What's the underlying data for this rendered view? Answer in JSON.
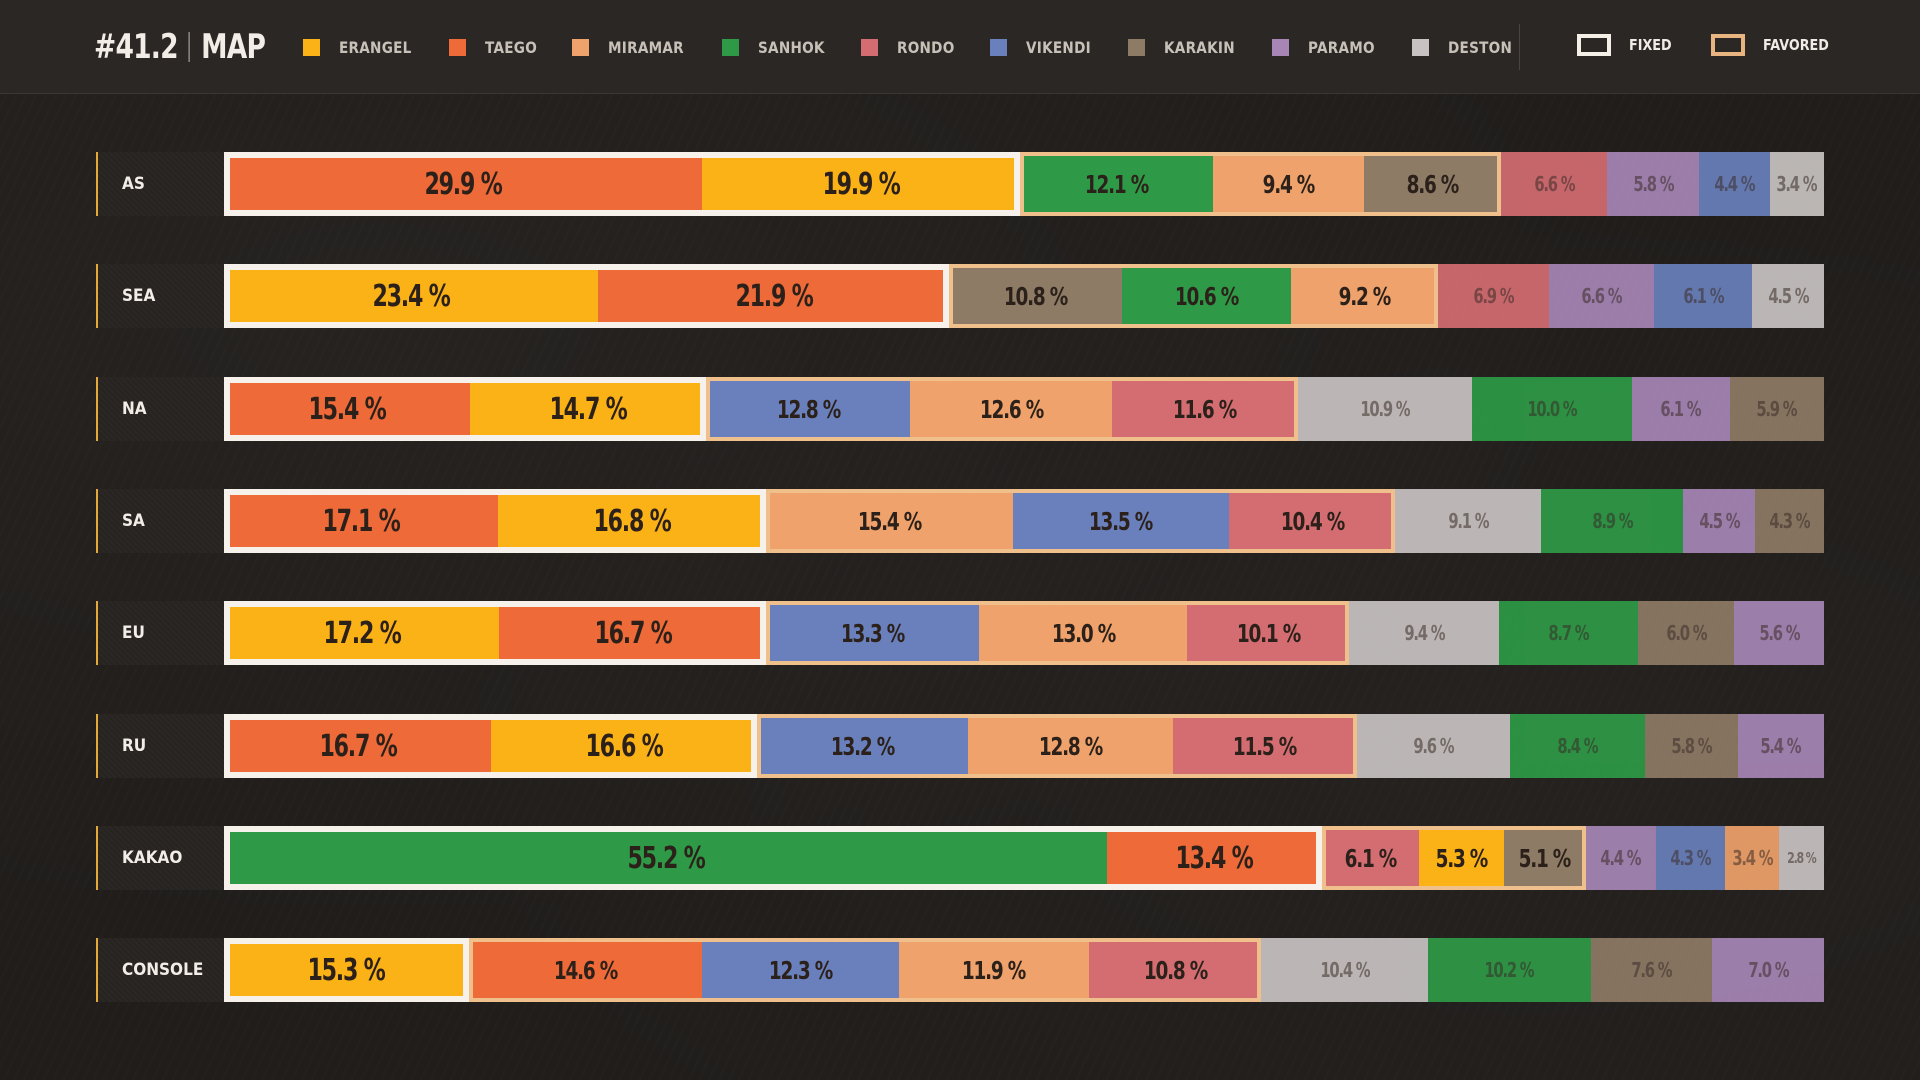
{
  "header": {
    "title_number": "#41.2",
    "title_word": "MAP"
  },
  "legend": [
    {
      "key": "erangel",
      "label": "ERANGEL",
      "color": "#fbb216"
    },
    {
      "key": "taego",
      "label": "TAEGO",
      "color": "#ee6a38"
    },
    {
      "key": "miramar",
      "label": "MIRAMAR",
      "color": "#efa26b"
    },
    {
      "key": "sanhok",
      "label": "SANHOK",
      "color": "#2e9a47"
    },
    {
      "key": "rondo",
      "label": "RONDO",
      "color": "#d46d72"
    },
    {
      "key": "vikendi",
      "label": "VIKENDI",
      "color": "#6a80bd"
    },
    {
      "key": "karakin",
      "label": "KARAKIN",
      "color": "#8e7b66"
    },
    {
      "key": "paramo",
      "label": "PARAMO",
      "color": "#a786b6"
    },
    {
      "key": "deston",
      "label": "DESTON",
      "color": "#c8c3c2"
    }
  ],
  "keys": {
    "fixed_label": "FIXED",
    "favored_label": "FAVORED"
  },
  "chart_data": {
    "type": "bar",
    "stacked": true,
    "orientation": "horizontal",
    "unit": "%",
    "rows": [
      {
        "region": "AS",
        "fixed": 2,
        "favored": 3,
        "segments": [
          {
            "map": "taego",
            "value": 29.9,
            "label": "29.9 %"
          },
          {
            "map": "erangel",
            "value": 19.9,
            "label": "19.9 %"
          },
          {
            "map": "sanhok",
            "value": 12.1,
            "label": "12.1 %"
          },
          {
            "map": "miramar",
            "value": 9.4,
            "label": "9.4 %"
          },
          {
            "map": "karakin",
            "value": 8.6,
            "label": "8.6 %"
          },
          {
            "map": "rondo",
            "value": 6.6,
            "label": "6.6 %"
          },
          {
            "map": "paramo",
            "value": 5.8,
            "label": "5.8 %"
          },
          {
            "map": "vikendi",
            "value": 4.4,
            "label": "4.4 %"
          },
          {
            "map": "deston",
            "value": 3.4,
            "label": "3.4 %"
          }
        ]
      },
      {
        "region": "SEA",
        "fixed": 2,
        "favored": 3,
        "segments": [
          {
            "map": "erangel",
            "value": 23.4,
            "label": "23.4 %"
          },
          {
            "map": "taego",
            "value": 21.9,
            "label": "21.9 %"
          },
          {
            "map": "karakin",
            "value": 10.8,
            "label": "10.8 %"
          },
          {
            "map": "sanhok",
            "value": 10.6,
            "label": "10.6 %"
          },
          {
            "map": "miramar",
            "value": 9.2,
            "label": "9.2 %"
          },
          {
            "map": "rondo",
            "value": 6.9,
            "label": "6.9 %"
          },
          {
            "map": "paramo",
            "value": 6.6,
            "label": "6.6 %"
          },
          {
            "map": "vikendi",
            "value": 6.1,
            "label": "6.1 %"
          },
          {
            "map": "deston",
            "value": 4.5,
            "label": "4.5 %"
          }
        ]
      },
      {
        "region": "NA",
        "fixed": 2,
        "favored": 3,
        "segments": [
          {
            "map": "taego",
            "value": 15.4,
            "label": "15.4 %"
          },
          {
            "map": "erangel",
            "value": 14.7,
            "label": "14.7 %"
          },
          {
            "map": "vikendi",
            "value": 12.8,
            "label": "12.8 %"
          },
          {
            "map": "miramar",
            "value": 12.6,
            "label": "12.6 %"
          },
          {
            "map": "rondo",
            "value": 11.6,
            "label": "11.6 %"
          },
          {
            "map": "deston",
            "value": 10.9,
            "label": "10.9 %"
          },
          {
            "map": "sanhok",
            "value": 10.0,
            "label": "10.0 %"
          },
          {
            "map": "paramo",
            "value": 6.1,
            "label": "6.1 %"
          },
          {
            "map": "karakin",
            "value": 5.9,
            "label": "5.9 %"
          }
        ]
      },
      {
        "region": "SA",
        "fixed": 2,
        "favored": 3,
        "segments": [
          {
            "map": "taego",
            "value": 17.1,
            "label": "17.1 %"
          },
          {
            "map": "erangel",
            "value": 16.8,
            "label": "16.8 %"
          },
          {
            "map": "miramar",
            "value": 15.4,
            "label": "15.4 %"
          },
          {
            "map": "vikendi",
            "value": 13.5,
            "label": "13.5 %"
          },
          {
            "map": "rondo",
            "value": 10.4,
            "label": "10.4 %"
          },
          {
            "map": "deston",
            "value": 9.1,
            "label": "9.1 %"
          },
          {
            "map": "sanhok",
            "value": 8.9,
            "label": "8.9 %"
          },
          {
            "map": "paramo",
            "value": 4.5,
            "label": "4.5 %"
          },
          {
            "map": "karakin",
            "value": 4.3,
            "label": "4.3 %"
          }
        ]
      },
      {
        "region": "EU",
        "fixed": 2,
        "favored": 3,
        "segments": [
          {
            "map": "erangel",
            "value": 17.2,
            "label": "17.2 %"
          },
          {
            "map": "taego",
            "value": 16.7,
            "label": "16.7 %"
          },
          {
            "map": "vikendi",
            "value": 13.3,
            "label": "13.3 %"
          },
          {
            "map": "miramar",
            "value": 13.0,
            "label": "13.0 %"
          },
          {
            "map": "rondo",
            "value": 10.1,
            "label": "10.1 %"
          },
          {
            "map": "deston",
            "value": 9.4,
            "label": "9.4 %"
          },
          {
            "map": "sanhok",
            "value": 8.7,
            "label": "8.7 %"
          },
          {
            "map": "karakin",
            "value": 6.0,
            "label": "6.0 %"
          },
          {
            "map": "paramo",
            "value": 5.6,
            "label": "5.6 %"
          }
        ]
      },
      {
        "region": "RU",
        "fixed": 2,
        "favored": 3,
        "segments": [
          {
            "map": "taego",
            "value": 16.7,
            "label": "16.7 %"
          },
          {
            "map": "erangel",
            "value": 16.6,
            "label": "16.6 %"
          },
          {
            "map": "vikendi",
            "value": 13.2,
            "label": "13.2 %"
          },
          {
            "map": "miramar",
            "value": 12.8,
            "label": "12.8 %"
          },
          {
            "map": "rondo",
            "value": 11.5,
            "label": "11.5 %"
          },
          {
            "map": "deston",
            "value": 9.6,
            "label": "9.6 %"
          },
          {
            "map": "sanhok",
            "value": 8.4,
            "label": "8.4 %"
          },
          {
            "map": "karakin",
            "value": 5.8,
            "label": "5.8 %"
          },
          {
            "map": "paramo",
            "value": 5.4,
            "label": "5.4 %"
          }
        ]
      },
      {
        "region": "KAKAO",
        "fixed": 2,
        "favored": 3,
        "segments": [
          {
            "map": "sanhok",
            "value": 55.2,
            "label": "55.2 %"
          },
          {
            "map": "taego",
            "value": 13.4,
            "label": "13.4 %"
          },
          {
            "map": "rondo",
            "value": 6.1,
            "label": "6.1 %"
          },
          {
            "map": "erangel",
            "value": 5.3,
            "label": "5.3 %"
          },
          {
            "map": "karakin",
            "value": 5.1,
            "label": "5.1 %"
          },
          {
            "map": "paramo",
            "value": 4.4,
            "label": "4.4 %"
          },
          {
            "map": "vikendi",
            "value": 4.3,
            "label": "4.3 %"
          },
          {
            "map": "miramar",
            "value": 3.4,
            "label": "3.4 %"
          },
          {
            "map": "deston",
            "value": 2.8,
            "label": "2.8 %"
          }
        ]
      },
      {
        "region": "CONSOLE",
        "fixed": 1,
        "favored": 4,
        "segments": [
          {
            "map": "erangel",
            "value": 15.3,
            "label": "15.3 %"
          },
          {
            "map": "taego",
            "value": 14.6,
            "label": "14.6 %"
          },
          {
            "map": "vikendi",
            "value": 12.3,
            "label": "12.3 %"
          },
          {
            "map": "miramar",
            "value": 11.9,
            "label": "11.9 %"
          },
          {
            "map": "rondo",
            "value": 10.8,
            "label": "10.8 %"
          },
          {
            "map": "deston",
            "value": 10.4,
            "label": "10.4 %"
          },
          {
            "map": "sanhok",
            "value": 10.2,
            "label": "10.2 %"
          },
          {
            "map": "karakin",
            "value": 7.6,
            "label": "7.6 %"
          },
          {
            "map": "paramo",
            "value": 7.0,
            "label": "7.0 %"
          }
        ]
      }
    ]
  }
}
